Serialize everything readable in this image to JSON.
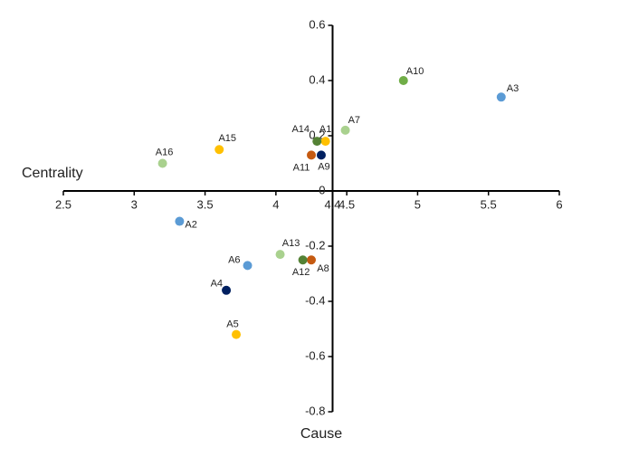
{
  "chart_data": {
    "type": "scatter",
    "x_label": "Cause",
    "y_label": "Centrality",
    "xlim": [
      2.5,
      6
    ],
    "ylim": [
      -0.8,
      0.6
    ],
    "xticks": [
      2.5,
      3,
      3.5,
      4,
      4.4,
      4.5,
      5,
      5.5,
      6
    ],
    "yticks": [
      0.6,
      0.4,
      0.2,
      0,
      -0.2,
      -0.4,
      -0.6,
      -0.8
    ],
    "x_axis_at": 0,
    "y_axis_at": 4.4,
    "points": [
      {
        "label": "A1",
        "x": 4.35,
        "y": 0.18,
        "color": "#ffc000"
      },
      {
        "label": "A2",
        "x": 3.32,
        "y": -0.11,
        "color": "#5b9bd5"
      },
      {
        "label": "A3",
        "x": 5.59,
        "y": 0.34,
        "color": "#5b9bd5"
      },
      {
        "label": "A4",
        "x": 3.65,
        "y": -0.36,
        "color": "#002060"
      },
      {
        "label": "A5",
        "x": 3.72,
        "y": -0.52,
        "color": "#ffc000"
      },
      {
        "label": "A6",
        "x": 3.8,
        "y": -0.27,
        "color": "#5b9bd5"
      },
      {
        "label": "A7",
        "x": 4.49,
        "y": 0.22,
        "color": "#a9d18e"
      },
      {
        "label": "A8",
        "x": 4.25,
        "y": -0.25,
        "color": "#c55a11"
      },
      {
        "label": "A9",
        "x": 4.32,
        "y": 0.13,
        "color": "#002060"
      },
      {
        "label": "A10",
        "x": 4.9,
        "y": 0.4,
        "color": "#70ad47"
      },
      {
        "label": "A11",
        "x": 4.25,
        "y": 0.13,
        "color": "#c55a11"
      },
      {
        "label": "A12",
        "x": 4.19,
        "y": -0.25,
        "color": "#548235"
      },
      {
        "label": "A13",
        "x": 4.03,
        "y": -0.23,
        "color": "#a9d18e"
      },
      {
        "label": "A14",
        "x": 4.29,
        "y": 0.18,
        "color": "#548235"
      },
      {
        "label": "A15",
        "x": 3.6,
        "y": 0.15,
        "color": "#ffc000"
      },
      {
        "label": "A16",
        "x": 3.2,
        "y": 0.1,
        "color": "#a9d18e"
      }
    ]
  }
}
